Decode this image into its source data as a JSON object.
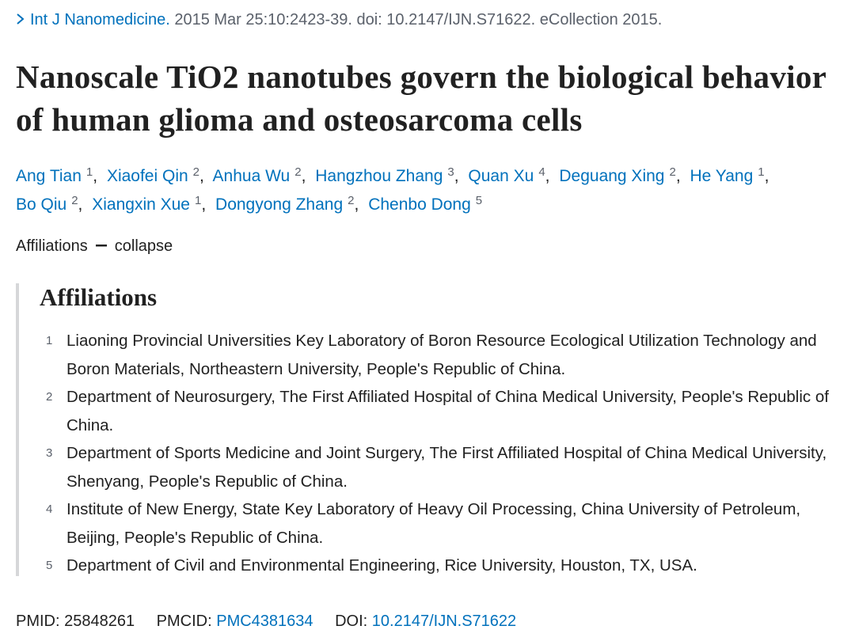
{
  "citation": {
    "journal": "Int J Nanomedicine.",
    "details": "2015 Mar 25:10:2423-39. doi: 10.2147/IJN.S71622. eCollection 2015."
  },
  "title": "Nanoscale TiO2 nanotubes govern the biological behavior of human glioma and osteosarcoma cells",
  "authors": [
    {
      "name": "Ang Tian",
      "aff": "1"
    },
    {
      "name": "Xiaofei Qin",
      "aff": "2"
    },
    {
      "name": "Anhua Wu",
      "aff": "2"
    },
    {
      "name": "Hangzhou Zhang",
      "aff": "3"
    },
    {
      "name": "Quan Xu",
      "aff": "4"
    },
    {
      "name": "Deguang Xing",
      "aff": "2"
    },
    {
      "name": "He Yang",
      "aff": "1"
    },
    {
      "name": "Bo Qiu",
      "aff": "2"
    },
    {
      "name": "Xiangxin Xue",
      "aff": "1"
    },
    {
      "name": "Dongyong Zhang",
      "aff": "2"
    },
    {
      "name": "Chenbo Dong",
      "aff": "5"
    }
  ],
  "affiliations_toggle": {
    "label": "Affiliations",
    "action": "collapse"
  },
  "affiliations": {
    "heading": "Affiliations",
    "items": [
      {
        "number": "1",
        "text": "Liaoning Provincial Universities Key Laboratory of Boron Resource Ecological Utilization Technology and Boron Materials, Northeastern University, People's Republic of China."
      },
      {
        "number": "2",
        "text": "Department of Neurosurgery, The First Affiliated Hospital of China Medical University, People's Republic of China."
      },
      {
        "number": "3",
        "text": "Department of Sports Medicine and Joint Surgery, The First Affiliated Hospital of China Medical University, Shenyang, People's Republic of China."
      },
      {
        "number": "4",
        "text": "Institute of New Energy, State Key Laboratory of Heavy Oil Processing, China University of Petroleum, Beijing, People's Republic of China."
      },
      {
        "number": "5",
        "text": "Department of Civil and Environmental Engineering, Rice University, Houston, TX, USA."
      }
    ]
  },
  "identifiers": {
    "pmid_label": "PMID:",
    "pmid": "25848261",
    "pmcid_label": "PMCID:",
    "pmcid": "PMC4381634",
    "doi_label": "DOI:",
    "doi": "10.2147/IJN.S71622"
  }
}
